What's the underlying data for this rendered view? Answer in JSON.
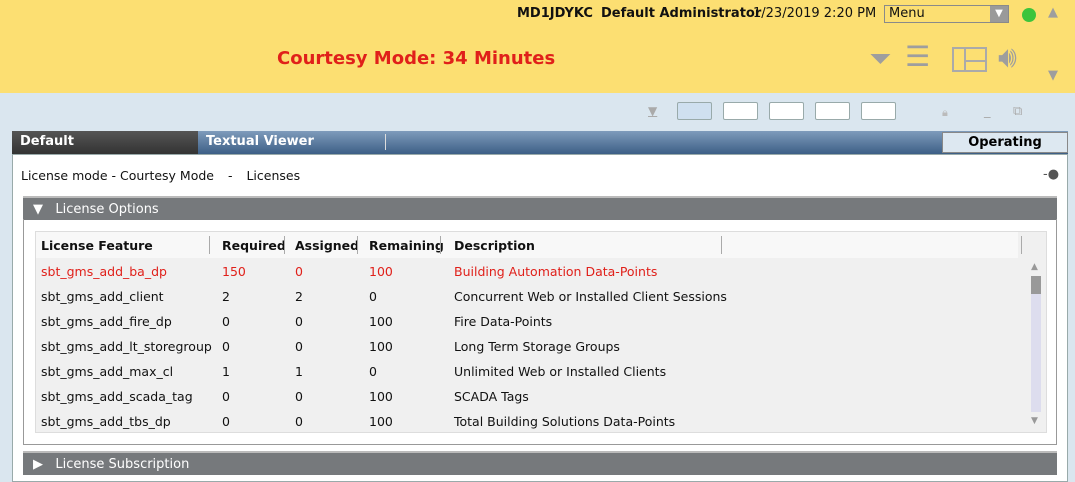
{
  "header": {
    "host": "MD1JDYKC",
    "user": "Default Administrator",
    "datetime": "1/23/2019  2:20 PM",
    "menu_value": "Menu",
    "courtesy": "Courtesy Mode: 34 Minutes"
  },
  "tabs": {
    "default": "Default",
    "textual": "Textual Viewer",
    "operating": "Operating"
  },
  "crumb": {
    "mode": "License mode - Courtesy Mode",
    "sep": "-",
    "page": "Licenses"
  },
  "sections": {
    "options": "License Options",
    "subscription": "License Subscription"
  },
  "table": {
    "columns": [
      "License Feature",
      "Required",
      "Assigned",
      "Remaining",
      "Description"
    ],
    "rows": [
      {
        "feature": "sbt_gms_add_ba_dp",
        "required": "150",
        "assigned": "0",
        "remaining": "100",
        "description": "Building Automation Data-Points",
        "alert": true
      },
      {
        "feature": "sbt_gms_add_client",
        "required": "2",
        "assigned": "2",
        "remaining": "0",
        "description": "Concurrent Web or Installed Client Sessions"
      },
      {
        "feature": "sbt_gms_add_fire_dp",
        "required": "0",
        "assigned": "0",
        "remaining": "100",
        "description": "Fire Data-Points"
      },
      {
        "feature": "sbt_gms_add_lt_storegroup",
        "required": "0",
        "assigned": "0",
        "remaining": "100",
        "description": "Long Term Storage Groups"
      },
      {
        "feature": "sbt_gms_add_max_cl",
        "required": "1",
        "assigned": "1",
        "remaining": "0",
        "description": "Unlimited Web or Installed Clients"
      },
      {
        "feature": "sbt_gms_add_scada_tag",
        "required": "0",
        "assigned": "0",
        "remaining": "100",
        "description": "SCADA Tags"
      },
      {
        "feature": "sbt_gms_add_tbs_dp",
        "required": "0",
        "assigned": "0",
        "remaining": "100",
        "description": "Total Building Solutions Data-Points"
      }
    ]
  },
  "colors": {
    "header": "#fcdf72",
    "alert": "#e0201a",
    "status_ok": "#3cc43c"
  }
}
